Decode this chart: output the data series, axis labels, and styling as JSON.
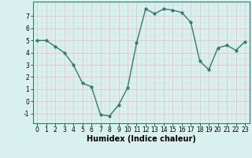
{
  "x": [
    0,
    1,
    2,
    3,
    4,
    5,
    6,
    7,
    8,
    9,
    10,
    11,
    12,
    13,
    14,
    15,
    16,
    17,
    18,
    19,
    20,
    21,
    22,
    23
  ],
  "y": [
    5.0,
    5.0,
    4.5,
    4.0,
    3.0,
    1.5,
    1.2,
    -1.1,
    -1.2,
    -0.3,
    1.1,
    4.8,
    7.6,
    7.2,
    7.6,
    7.5,
    7.3,
    6.5,
    3.3,
    2.6,
    4.4,
    4.6,
    4.2,
    4.9
  ],
  "line_color": "#2e7d6e",
  "marker": "o",
  "markersize": 2,
  "linewidth": 1.0,
  "bg_color": "#d8f0ee",
  "grid_color_major": "#f0c0c0",
  "grid_color_minor": "#c8e8e0",
  "xlabel": "Humidex (Indice chaleur)",
  "xlabel_fontsize": 7,
  "ylabel": "",
  "xlim": [
    -0.5,
    23.5
  ],
  "ylim": [
    -1.8,
    8.2
  ],
  "yticks": [
    -1,
    0,
    1,
    2,
    3,
    4,
    5,
    6,
    7
  ],
  "xticks": [
    0,
    1,
    2,
    3,
    4,
    5,
    6,
    7,
    8,
    9,
    10,
    11,
    12,
    13,
    14,
    15,
    16,
    17,
    18,
    19,
    20,
    21,
    22,
    23
  ],
  "tick_fontsize": 5.5,
  "spine_color": "#2e7d6e"
}
